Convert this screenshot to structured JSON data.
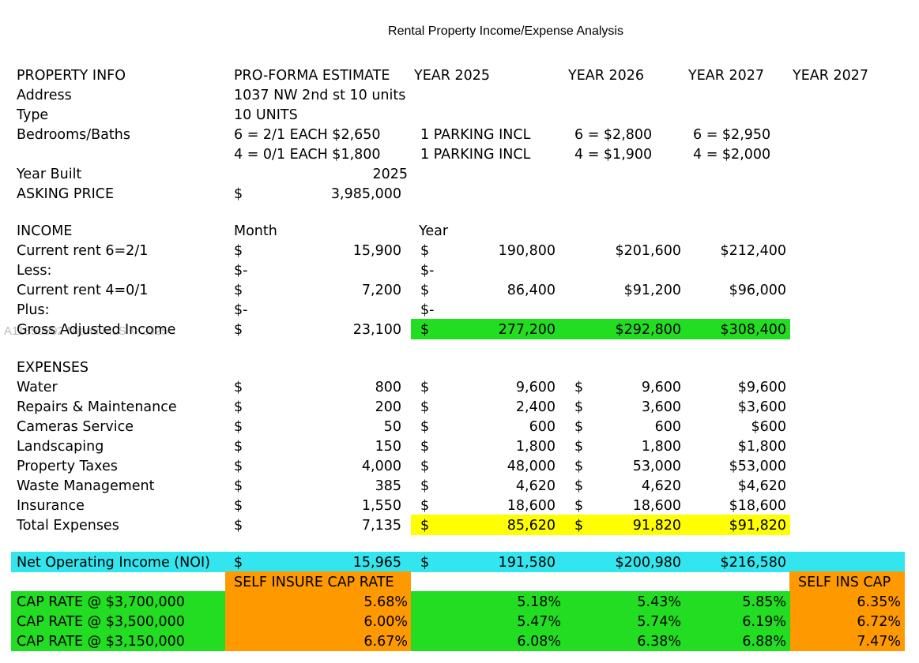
{
  "title": "Rental Property Income/Expense Analysis",
  "watermark": "A11850502 Miami MLS © 2025",
  "rows": [
    [
      "PROPERTY INFO",
      "PRO-FORMA ESTIMATE",
      "YEAR 2025",
      "YEAR 2026",
      "YEAR 2027",
      "YEAR 2027"
    ],
    [
      "Address",
      "1037 NW 2nd st 10 units"
    ],
    [
      "Type",
      "10 UNITS"
    ],
    [
      "Bedrooms/Baths",
      "6 = 2/1 EACH $2,650",
      "1 PARKING INCL",
      "6 = $2,800",
      "6 = $2,950"
    ],
    [
      null,
      "4 = 0/1 EACH $1,800",
      "1 PARKING INCL",
      "4 = $1,900",
      "4 = $2,000"
    ],
    [
      "Year Built",
      "2025"
    ],
    [
      "ASKING PRICE",
      "$",
      "3,985,000"
    ],
    [
      "INCOME",
      "Month",
      "Year"
    ],
    [
      "Current rent 6=2/1",
      "$",
      "15,900",
      "$",
      "190,800",
      null,
      "$201,600",
      "$212,400"
    ],
    [
      "Less:",
      "$-",
      null,
      "$-"
    ],
    [
      "Current rent 4=0/1",
      "$",
      "7,200",
      "$",
      "86,400",
      null,
      "$91,200",
      "$96,000"
    ],
    [
      "Plus:",
      "$-",
      null,
      "$-"
    ],
    [
      "Gross Adjusted Income",
      "$",
      "23,100",
      "$",
      "277,200",
      null,
      "$292,800",
      "$308,400"
    ],
    [
      "EXPENSES"
    ],
    [
      "Water",
      "$",
      "800",
      "$",
      "9,600",
      "$",
      "9,600",
      "$9,600"
    ],
    [
      "Repairs & Maintenance",
      "$",
      "200",
      "$",
      "2,400",
      "$",
      "3,600",
      "$3,600"
    ],
    [
      "Cameras Service",
      "$",
      "50",
      "$",
      "600",
      "$",
      "600",
      "$600"
    ],
    [
      "Landscaping",
      "$",
      "150",
      "$",
      "1,800",
      "$",
      "1,800",
      "$1,800"
    ],
    [
      "Property Taxes",
      "$",
      "4,000",
      "$",
      "48,000",
      "$",
      "53,000",
      "$53,000"
    ],
    [
      "Waste Management",
      "$",
      "385",
      "$",
      "4,620",
      "$",
      "4,620",
      "$4,620"
    ],
    [
      "Insurance",
      "$",
      "1,550",
      "$",
      "18,600",
      "$",
      "18,600",
      "$18,600"
    ],
    [
      "Total Expenses",
      "$",
      "7,135",
      "$",
      "85,620",
      "$",
      "91,820",
      "$91,820"
    ],
    [
      "Net Operating Income (NOI)",
      "$",
      "15,965",
      "$",
      "191,580",
      null,
      "$200,980",
      "$216,580"
    ],
    [
      "SELF INSURE CAP RATE",
      "SELF INS CAP"
    ],
    [
      "CAP RATE @ $3,700,000",
      "5.68%",
      "5.18%",
      "5.43%",
      "5.85%",
      "6.35%"
    ],
    [
      "CAP RATE @ $3,500,000",
      "6.00%",
      "5.47%",
      "5.74%",
      "6.19%",
      "6.72%"
    ],
    [
      "CAP RATE @ $3,150,000",
      "6.67%",
      "6.08%",
      "6.38%",
      "6.88%",
      "7.47%"
    ]
  ]
}
